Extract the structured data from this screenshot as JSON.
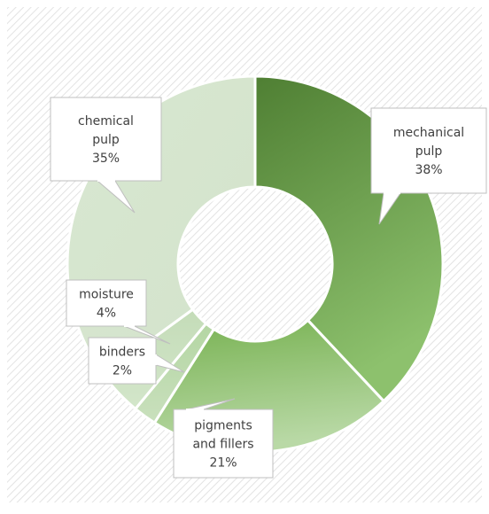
{
  "chart_data": {
    "type": "pie",
    "variant": "doughnut",
    "categories": [
      "mechanical pulp",
      "pigments and fillers",
      "binders",
      "moisture",
      "chemical pulp"
    ],
    "values": [
      38,
      21,
      2,
      4,
      35
    ],
    "unit": "%",
    "labels": [
      {
        "lines": [
          "mechanical",
          "pulp",
          "38%"
        ]
      },
      {
        "lines": [
          "pigments",
          "and fillers",
          "21%"
        ]
      },
      {
        "lines": [
          "binders",
          "2%"
        ]
      },
      {
        "lines": [
          "moisture",
          "4%"
        ]
      },
      {
        "lines": [
          "chemical",
          "pulp",
          "35%"
        ]
      }
    ],
    "colors": [
      "#5a8f3e",
      "#9fc98a",
      "#c2ddb4",
      "#cfe2c6",
      "#d6e5cf"
    ],
    "start_angle_deg": 0,
    "direction": "clockwise",
    "legend": "none",
    "background": "diagonal-hatch"
  }
}
